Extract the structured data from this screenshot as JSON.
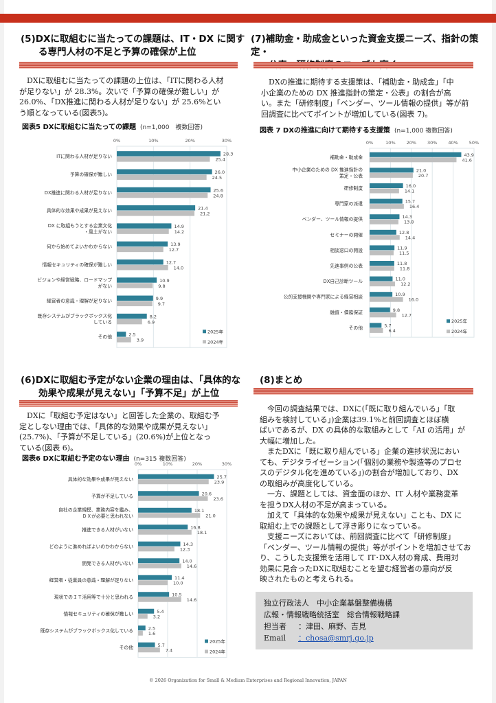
{
  "colors": {
    "accent_bar": "#c8301c",
    "series_2025": "#2e7f96",
    "series_2024": "#bfbfbf"
  },
  "s5": {
    "heading_line1": "(5)DXに取組むに当たっての課題は、IT・DX に関す",
    "heading_line2": "る専門人材の不足と予算の確保が上位",
    "body": [
      "DXに取組むに当たっての課題の上位は、「ITに関わる人材",
      "が足りない」が 28.3%。次いで「予算の確保が難しい」が",
      "26.0%、「DX推進に関わる人材が足りない」が 25.6%とい",
      "う順となっている(図表5)。"
    ]
  },
  "s7": {
    "heading_line1": "(7)補助金・助成金といった資金支援ニーズ、指針の策定・",
    "heading_line2": "公表、研修制度のニーズも高く",
    "body": [
      "DXの推進に期待する支援策は、「補助金・助成金」「中",
      "小企業のための DX 推進指針の策定・公表」の割合が高",
      "い。また「研修制度」「ベンダー、ツール情報の提供」等が前",
      "回調査に比べてポイントが増加している(図表 7)。"
    ]
  },
  "s6": {
    "heading_line1": "(6)DXに取組む予定がない企業の理由は、「具体的な",
    "heading_line2": "効果や成果が見えない」「予算不足」が上位",
    "body": [
      "DXに「取組む予定はない」と回答した企業の、取組む予",
      "定としない理由では、「具体的な効果や成果が見えない」",
      "(25.7%)、「予算が不足している」(20.6%)が上位となっ",
      "ている(図表 6)。"
    ]
  },
  "s8": {
    "heading": "(8)まとめ",
    "body": [
      [
        "今回の調査結果では、DXに(「既に取り組んでいる」「取",
        "組みを検討している」)企業は39.1%と前回調査とほぼ横",
        "ばいであるが、DX の具体的な取組みとして「AI の活用」が",
        "大幅に増加した。"
      ],
      [
        "またDXに「既に取り組んでいる」企業の進捗状況におい",
        "ても、デジタライゼーション(「個別の業務や製造等のプロセ",
        "スのデジタル化を進めている」)の割合が増加しており、DX",
        "の取組みが高度化している。"
      ],
      [
        "一方、課題としては、資金面のほか、IT 人材や業務変革",
        "を担うDX人材の不足が高まっている。"
      ],
      [
        "加えて「具体的な効果や成果が見えない」ことも、DX に",
        "取組む上での課題として浮き彫りになっている。"
      ],
      [
        "支援ニーズにおいては、前回調査に比べて「研修制度」",
        "「ベンダー、ツール情報の提供」等がポイントを増加させてお",
        "り、こうした支援策を活用して IT･DX人材の育成、費用対",
        "効果に見合ったDXに取組むことを望む経営者の意向が反",
        "映されたものと考えられる。"
      ]
    ]
  },
  "contact": {
    "org": "独立行政法人　中小企業基盤整備機構",
    "dept": "広報・情報戦略統括室　総合情報戦略課",
    "person_label": "担当者",
    "person": "：津田、麻野、吉見",
    "email_label": "Email",
    "email": "：chosa@smrj.go.jp"
  },
  "footer": "© 2026 Organization for Small & Medium Enterprises and Regional Innovation, JAPAN",
  "chart_data": [
    {
      "id": "fig5",
      "type": "bar",
      "title": "図表5 DXに取組むに当たっての課題",
      "note": "(n=1,000　複数回答)",
      "ticks": [
        "0%",
        "10%",
        "20%",
        "30%"
      ],
      "xlim": [
        0,
        30
      ],
      "categories": [
        "ITに関わる人材が足りない",
        "予算の確保が難しい",
        "DX推進に関わる人材が足りない",
        "具体的な効果や成果が見えない",
        "DX に取組もうとする企業文化\n・風土がない",
        "何から始めてよいかわからない",
        "情報セキュリティの確保が難しい",
        "ビジョンや経営戦略、ロードマップ\nがない",
        "経営者の意識・理解が足りない",
        "既存システムがブラックボックス化\nしている",
        "その他"
      ],
      "series": [
        {
          "name": "2025年",
          "values": [
            28.3,
            26.0,
            25.6,
            21.4,
            14.9,
            13.9,
            12.7,
            10.9,
            9.9,
            8.2,
            2.5
          ]
        },
        {
          "name": "2024年",
          "values": [
            25.4,
            24.5,
            24.8,
            21.2,
            14.2,
            12.7,
            14.0,
            9.8,
            9.7,
            6.9,
            3.9
          ]
        }
      ]
    },
    {
      "id": "fig7",
      "type": "bar",
      "title": "図表 7 DXの推進に向けて期待する支援策",
      "note": "(n=1,000 複数回答)",
      "ticks": [
        "0%",
        "10%",
        "20%",
        "30%",
        "40%",
        "50%"
      ],
      "xlim": [
        0,
        50
      ],
      "categories": [
        "補助金・助成金",
        "中小企業のための DX 推進指針の\n策定・公表",
        "研修制度",
        "専門家の派遣",
        "ベンダー、ツール情報の提供",
        "セミナーの開催",
        "相談窓口の開設",
        "先進事例の公表",
        "DX自己診断ツール",
        "公的支援機関や専門家による経営相談",
        "融資・債務保証",
        "その他"
      ],
      "series": [
        {
          "name": "2025年",
          "values": [
            43.9,
            21.0,
            16.0,
            15.7,
            14.3,
            12.8,
            11.9,
            11.8,
            11.0,
            10.9,
            9.8,
            5.7
          ]
        },
        {
          "name": "2024年",
          "values": [
            41.6,
            20.7,
            14.1,
            16.4,
            13.8,
            14.4,
            11.5,
            11.8,
            12.2,
            16.0,
            12.7,
            6.4
          ]
        }
      ]
    },
    {
      "id": "fig6",
      "type": "bar",
      "title": "図表6 DXに取組む予定のない理由",
      "note": "(n=315 複数回答)",
      "ticks": [
        "0%",
        "10%",
        "20%",
        "30%"
      ],
      "xlim": [
        0,
        30
      ],
      "categories": [
        "具体的な効果や成果が見えない",
        "予算が不足している",
        "自社の企業規模、業務内容を鑑み、\nＤＸが必要と思われない",
        "推進できる人材がいない",
        "どのように進めればよいのかわからない",
        "開発できる人材がいない",
        "経営者・従業員の意識・理解が足りない",
        "現状でのＩＴ活用等で十分と思われる",
        "情報セキュリティの確保が難しい",
        "既存システムがブラックボックス化している",
        "その他"
      ],
      "series": [
        {
          "name": "2025年",
          "values": [
            25.7,
            20.6,
            18.1,
            16.8,
            14.3,
            14.0,
            11.4,
            10.5,
            5.4,
            2.5,
            5.7
          ]
        },
        {
          "name": "2024年",
          "values": [
            23.9,
            23.6,
            21.0,
            18.1,
            12.3,
            14.6,
            10.0,
            14.6,
            3.2,
            1.6,
            7.4
          ]
        }
      ]
    }
  ]
}
